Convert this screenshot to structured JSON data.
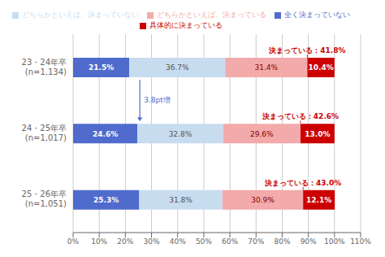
{
  "chart_data": {
    "type": "bar",
    "orientation": "horizontal",
    "stacked": true,
    "data_labels": true,
    "grid": true,
    "categories": [
      "23・24年卒\n(n=1,134)",
      "24・25年卒\n(n=1,017)",
      "25・26年卒\n(n=1,051)"
    ],
    "series": [
      {
        "name": "全く決まっていない",
        "color": "#4F6BCC",
        "values": [
          21.5,
          24.6,
          25.3
        ],
        "value_labels": [
          "21.5%",
          "24.6%",
          "25.3%"
        ]
      },
      {
        "name": "どちらかといえば、決まっていない",
        "color": "#C8DCF0",
        "values": [
          36.7,
          32.8,
          31.8
        ],
        "value_labels": [
          "36.7%",
          "32.8%",
          "31.8%"
        ]
      },
      {
        "name": "どちらかといえば、決まっている",
        "color": "#F2AAAA",
        "values": [
          31.4,
          29.6,
          30.9
        ],
        "value_labels": [
          "31.4%",
          "29.6%",
          "30.9%"
        ]
      },
      {
        "name": "具体的に決まっている",
        "color": "#CC0000",
        "values": [
          10.4,
          13.0,
          12.1
        ],
        "value_labels": [
          "10.4%",
          "13.0%",
          "12.1%"
        ]
      }
    ],
    "annotations": [
      "決まっている：41.8%",
      "決まっている：42.6%",
      "決まっている：43.0%",
      "3.8pt増"
    ],
    "xlim": [
      0,
      110
    ],
    "xticks": [
      {
        "value": 0,
        "label": "0%"
      },
      {
        "value": 10,
        "label": "10%"
      },
      {
        "value": 20,
        "label": "20%"
      },
      {
        "value": 30,
        "label": "30%"
      },
      {
        "value": 40,
        "label": "40%"
      },
      {
        "value": 50,
        "label": "50%"
      },
      {
        "value": 60,
        "label": "60%"
      },
      {
        "value": 70,
        "label": "70%"
      },
      {
        "value": 80,
        "label": "80%"
      },
      {
        "value": 90,
        "label": "90%"
      },
      {
        "value": 100,
        "label": "100%"
      },
      {
        "value": 110,
        "label": "110%"
      }
    ]
  }
}
